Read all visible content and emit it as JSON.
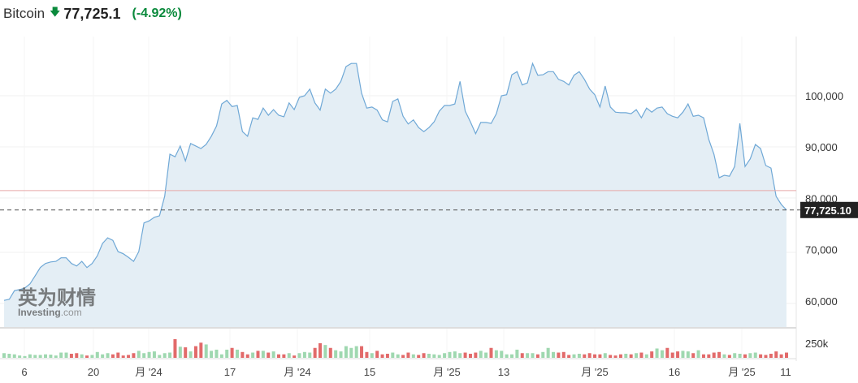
{
  "header": {
    "name": "Bitcoin",
    "direction_icon": "arrow-down-icon",
    "price": "77,725.1",
    "change": "(-4.92%)"
  },
  "colors": {
    "line": "#6fa8d6",
    "area": "#e4eef5",
    "up": "#9fd8b0",
    "down": "#e26a6a",
    "ref_line": "#e7a8a8",
    "change": "#0a8a3c"
  },
  "chart_data": {
    "type": "area",
    "y_ticks": [
      "100,000",
      "90,000",
      "80,000",
      "70,000",
      "60,000"
    ],
    "y_tick_values": [
      100000,
      90000,
      80000,
      70000,
      60000
    ],
    "ylim": [
      56000,
      110000
    ],
    "x_ticks": [
      "6",
      "20",
      "月 '24",
      "17",
      "月 '24",
      "15",
      "月 '25",
      "13",
      "月 '25",
      "16",
      "月 '25",
      "11"
    ],
    "last_price_label": "77,725.10",
    "last_price": 77725.1,
    "reference_level": 81500,
    "volume_tick": "250k",
    "volume_tick_value": 250000,
    "prices": [
      60100,
      60300,
      62000,
      62200,
      62500,
      63300,
      64900,
      66500,
      67300,
      67600,
      67700,
      68400,
      68400,
      67300,
      66800,
      67700,
      66500,
      67300,
      68800,
      71200,
      72300,
      71800,
      69600,
      69200,
      68500,
      67700,
      69600,
      75200,
      75600,
      76300,
      76600,
      80400,
      88600,
      88100,
      90200,
      87300,
      90700,
      90200,
      89700,
      90500,
      92100,
      94100,
      98400,
      99100,
      97900,
      98100,
      93000,
      92100,
      95700,
      95400,
      97600,
      96200,
      97300,
      96200,
      95900,
      98600,
      97300,
      99700,
      100000,
      101300,
      98600,
      97200,
      101300,
      100500,
      101300,
      102800,
      105700,
      106300,
      106300,
      100500,
      97600,
      97800,
      97200,
      95300,
      94900,
      98900,
      99400,
      96000,
      94500,
      95300,
      93800,
      93000,
      93800,
      94900,
      97000,
      98100,
      98100,
      98400,
      102800,
      97000,
      94900,
      92600,
      94800,
      94800,
      94600,
      96500,
      100000,
      100200,
      104100,
      104700,
      102100,
      102500,
      106300,
      104000,
      104100,
      104700,
      104700,
      103200,
      102800,
      102100,
      104000,
      104700,
      103200,
      101300,
      100200,
      97800,
      101900,
      97800,
      96800,
      96700,
      96700,
      96500,
      97300,
      95700,
      97600,
      96800,
      97600,
      97800,
      96500,
      96000,
      95700,
      96800,
      98400,
      96000,
      96200,
      95700,
      91500,
      88600,
      84000,
      84500,
      84300,
      86200,
      94600,
      86200,
      87700,
      90500,
      89700,
      86400,
      85900,
      80400,
      78800,
      77725
    ],
    "volumes_k": [
      80,
      70,
      60,
      40,
      30,
      60,
      50,
      50,
      60,
      55,
      40,
      90,
      90,
      70,
      80,
      60,
      40,
      50,
      100,
      60,
      80,
      60,
      90,
      40,
      50,
      80,
      120,
      80,
      100,
      110,
      50,
      80,
      90,
      320,
      190,
      180,
      110,
      200,
      260,
      230,
      120,
      140,
      60,
      140,
      170,
      140,
      100,
      60,
      90,
      120,
      120,
      90,
      110,
      60,
      60,
      80,
      40,
      80,
      100,
      90,
      170,
      250,
      220,
      170,
      130,
      110,
      200,
      170,
      200,
      200,
      100,
      80,
      120,
      60,
      70,
      90,
      60,
      50,
      90,
      60,
      50,
      80,
      70,
      60,
      50,
      80,
      100,
      110,
      80,
      90,
      70,
      90,
      120,
      90,
      170,
      130,
      120,
      60,
      60,
      140,
      80,
      80,
      80,
      60,
      100,
      170,
      100,
      90,
      100,
      50,
      60,
      70,
      60,
      80,
      60,
      60,
      80,
      50,
      40,
      60,
      70,
      60,
      80,
      90,
      60,
      110,
      160,
      130,
      170,
      90,
      110,
      120,
      110,
      80,
      130,
      60,
      60,
      90,
      100,
      60,
      50,
      80,
      70,
      60,
      80,
      90,
      60,
      50,
      70,
      110,
      60,
      90,
      80,
      60,
      100,
      60,
      70,
      90
    ]
  }
}
